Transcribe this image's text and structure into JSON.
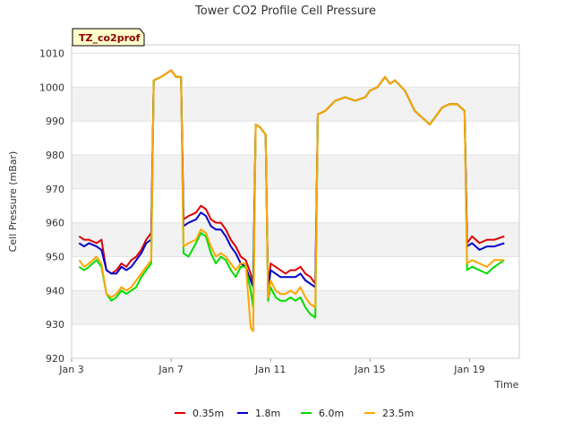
{
  "chart_data": {
    "type": "line",
    "title": "Tower CO2 Profile Cell Pressure",
    "xlabel": "Time",
    "ylabel": "Cell Pressure (mBar)",
    "badge": "TZ_co2prof",
    "x_ticks": [
      {
        "label": "Jan 3",
        "day": 3
      },
      {
        "label": "Jan 7",
        "day": 7
      },
      {
        "label": "Jan 11",
        "day": 11
      },
      {
        "label": "Jan 15",
        "day": 15
      },
      {
        "label": "Jan 19",
        "day": 19
      }
    ],
    "xlim": [
      3,
      21
    ],
    "y_ticks": [
      920,
      930,
      940,
      950,
      960,
      970,
      980,
      990,
      1000,
      1010
    ],
    "ylim": [
      920,
      1012.5
    ],
    "grid": true,
    "legend_position": "bottom",
    "series": [
      {
        "name": "0.35m",
        "color": "#dd0000",
        "points": [
          [
            3.3,
            956
          ],
          [
            3.5,
            955
          ],
          [
            3.7,
            955
          ],
          [
            4.0,
            954
          ],
          [
            4.2,
            955
          ],
          [
            4.4,
            946
          ],
          [
            4.6,
            945
          ],
          [
            4.8,
            946
          ],
          [
            5.0,
            948
          ],
          [
            5.2,
            947
          ],
          [
            5.4,
            949
          ],
          [
            5.6,
            950
          ],
          [
            5.8,
            952
          ],
          [
            6.0,
            955
          ],
          [
            6.2,
            957
          ],
          [
            6.3,
            1002
          ],
          [
            6.6,
            1003
          ],
          [
            7.0,
            1005
          ],
          [
            7.2,
            1003
          ],
          [
            7.4,
            1003
          ],
          [
            7.5,
            961
          ],
          [
            7.7,
            962
          ],
          [
            8.0,
            963
          ],
          [
            8.2,
            965
          ],
          [
            8.4,
            964
          ],
          [
            8.6,
            961
          ],
          [
            8.8,
            960
          ],
          [
            9.0,
            960
          ],
          [
            9.2,
            958
          ],
          [
            9.4,
            955
          ],
          [
            9.6,
            953
          ],
          [
            9.8,
            950
          ],
          [
            10.0,
            949
          ],
          [
            10.2,
            945
          ],
          [
            10.3,
            942
          ],
          [
            10.4,
            989
          ],
          [
            10.6,
            988
          ],
          [
            10.8,
            986
          ],
          [
            10.9,
            940
          ],
          [
            11.0,
            948
          ],
          [
            11.2,
            947
          ],
          [
            11.4,
            946
          ],
          [
            11.6,
            945
          ],
          [
            11.8,
            946
          ],
          [
            12.0,
            946
          ],
          [
            12.2,
            947
          ],
          [
            12.4,
            945
          ],
          [
            12.6,
            944
          ],
          [
            12.8,
            942
          ],
          [
            12.9,
            992
          ],
          [
            13.2,
            993
          ],
          [
            13.6,
            996
          ],
          [
            14.0,
            997
          ],
          [
            14.4,
            996
          ],
          [
            14.8,
            997
          ],
          [
            15.0,
            999
          ],
          [
            15.3,
            1000
          ],
          [
            15.6,
            1003
          ],
          [
            15.8,
            1001
          ],
          [
            16.0,
            1002
          ],
          [
            16.4,
            999
          ],
          [
            16.8,
            993
          ],
          [
            17.1,
            991
          ],
          [
            17.4,
            989
          ],
          [
            17.6,
            991
          ],
          [
            17.9,
            994
          ],
          [
            18.2,
            995
          ],
          [
            18.5,
            995
          ],
          [
            18.8,
            993
          ],
          [
            18.9,
            954
          ],
          [
            19.1,
            956
          ],
          [
            19.4,
            954
          ],
          [
            19.7,
            955
          ],
          [
            20.0,
            955
          ],
          [
            20.4,
            956
          ]
        ]
      },
      {
        "name": "1.8m",
        "color": "#0000cc",
        "points": [
          [
            3.3,
            954
          ],
          [
            3.5,
            953
          ],
          [
            3.7,
            954
          ],
          [
            4.0,
            953
          ],
          [
            4.2,
            952
          ],
          [
            4.4,
            946
          ],
          [
            4.6,
            945
          ],
          [
            4.8,
            945
          ],
          [
            5.0,
            947
          ],
          [
            5.2,
            946
          ],
          [
            5.4,
            947
          ],
          [
            5.6,
            949
          ],
          [
            5.8,
            951
          ],
          [
            6.0,
            954
          ],
          [
            6.2,
            955
          ],
          [
            6.3,
            1002
          ],
          [
            6.6,
            1003
          ],
          [
            7.0,
            1005
          ],
          [
            7.2,
            1003
          ],
          [
            7.4,
            1003
          ],
          [
            7.5,
            959
          ],
          [
            7.7,
            960
          ],
          [
            8.0,
            961
          ],
          [
            8.2,
            963
          ],
          [
            8.4,
            962
          ],
          [
            8.6,
            959
          ],
          [
            8.8,
            958
          ],
          [
            9.0,
            958
          ],
          [
            9.2,
            956
          ],
          [
            9.4,
            953
          ],
          [
            9.6,
            951
          ],
          [
            9.8,
            948
          ],
          [
            10.0,
            947
          ],
          [
            10.2,
            943
          ],
          [
            10.3,
            941
          ],
          [
            10.4,
            989
          ],
          [
            10.6,
            988
          ],
          [
            10.8,
            986
          ],
          [
            10.9,
            939
          ],
          [
            11.0,
            946
          ],
          [
            11.2,
            945
          ],
          [
            11.4,
            944
          ],
          [
            11.6,
            944
          ],
          [
            11.8,
            944
          ],
          [
            12.0,
            944
          ],
          [
            12.2,
            945
          ],
          [
            12.4,
            943
          ],
          [
            12.6,
            942
          ],
          [
            12.8,
            941
          ],
          [
            12.9,
            992
          ],
          [
            13.2,
            993
          ],
          [
            13.6,
            996
          ],
          [
            14.0,
            997
          ],
          [
            14.4,
            996
          ],
          [
            14.8,
            997
          ],
          [
            15.0,
            999
          ],
          [
            15.3,
            1000
          ],
          [
            15.6,
            1003
          ],
          [
            15.8,
            1001
          ],
          [
            16.0,
            1002
          ],
          [
            16.4,
            999
          ],
          [
            16.8,
            993
          ],
          [
            17.1,
            991
          ],
          [
            17.4,
            989
          ],
          [
            17.6,
            991
          ],
          [
            17.9,
            994
          ],
          [
            18.2,
            995
          ],
          [
            18.5,
            995
          ],
          [
            18.8,
            993
          ],
          [
            18.9,
            953
          ],
          [
            19.1,
            954
          ],
          [
            19.4,
            952
          ],
          [
            19.7,
            953
          ],
          [
            20.0,
            953
          ],
          [
            20.4,
            954
          ]
        ]
      },
      {
        "name": "6.0m",
        "color": "#00dd00",
        "points": [
          [
            3.3,
            947
          ],
          [
            3.5,
            946
          ],
          [
            3.7,
            947
          ],
          [
            4.0,
            949
          ],
          [
            4.2,
            947
          ],
          [
            4.4,
            939
          ],
          [
            4.6,
            937
          ],
          [
            4.8,
            938
          ],
          [
            5.0,
            940
          ],
          [
            5.2,
            939
          ],
          [
            5.4,
            940
          ],
          [
            5.6,
            941
          ],
          [
            5.8,
            944
          ],
          [
            6.0,
            946
          ],
          [
            6.2,
            948
          ],
          [
            6.3,
            1002
          ],
          [
            6.6,
            1003
          ],
          [
            7.0,
            1005
          ],
          [
            7.2,
            1003
          ],
          [
            7.4,
            1003
          ],
          [
            7.5,
            951
          ],
          [
            7.7,
            950
          ],
          [
            8.0,
            954
          ],
          [
            8.2,
            957
          ],
          [
            8.4,
            956
          ],
          [
            8.6,
            951
          ],
          [
            8.8,
            948
          ],
          [
            9.0,
            950
          ],
          [
            9.2,
            949
          ],
          [
            9.4,
            946
          ],
          [
            9.6,
            944
          ],
          [
            9.8,
            947
          ],
          [
            10.0,
            947
          ],
          [
            10.2,
            940
          ],
          [
            10.3,
            935
          ],
          [
            10.4,
            989
          ],
          [
            10.6,
            988
          ],
          [
            10.8,
            986
          ],
          [
            10.9,
            937
          ],
          [
            11.0,
            941
          ],
          [
            11.2,
            938
          ],
          [
            11.4,
            937
          ],
          [
            11.6,
            937
          ],
          [
            11.8,
            938
          ],
          [
            12.0,
            937
          ],
          [
            12.2,
            938
          ],
          [
            12.4,
            935
          ],
          [
            12.6,
            933
          ],
          [
            12.8,
            932
          ],
          [
            12.9,
            992
          ],
          [
            13.2,
            993
          ],
          [
            13.6,
            996
          ],
          [
            14.0,
            997
          ],
          [
            14.4,
            996
          ],
          [
            14.8,
            997
          ],
          [
            15.0,
            999
          ],
          [
            15.3,
            1000
          ],
          [
            15.6,
            1003
          ],
          [
            15.8,
            1001
          ],
          [
            16.0,
            1002
          ],
          [
            16.4,
            999
          ],
          [
            16.8,
            993
          ],
          [
            17.1,
            991
          ],
          [
            17.4,
            989
          ],
          [
            17.6,
            991
          ],
          [
            17.9,
            994
          ],
          [
            18.2,
            995
          ],
          [
            18.5,
            995
          ],
          [
            18.8,
            993
          ],
          [
            18.9,
            946
          ],
          [
            19.1,
            947
          ],
          [
            19.4,
            946
          ],
          [
            19.7,
            945
          ],
          [
            20.0,
            947
          ],
          [
            20.4,
            949
          ]
        ]
      },
      {
        "name": "23.5m",
        "color": "#ffa500",
        "points": [
          [
            3.3,
            949
          ],
          [
            3.5,
            947
          ],
          [
            3.7,
            948
          ],
          [
            4.0,
            950
          ],
          [
            4.2,
            948
          ],
          [
            4.4,
            939
          ],
          [
            4.6,
            938
          ],
          [
            4.8,
            939
          ],
          [
            5.0,
            941
          ],
          [
            5.2,
            940
          ],
          [
            5.4,
            941
          ],
          [
            5.6,
            943
          ],
          [
            5.8,
            945
          ],
          [
            6.0,
            947
          ],
          [
            6.2,
            949
          ],
          [
            6.3,
            1002
          ],
          [
            6.6,
            1003
          ],
          [
            7.0,
            1005
          ],
          [
            7.2,
            1003
          ],
          [
            7.4,
            1003
          ],
          [
            7.5,
            953
          ],
          [
            7.7,
            954
          ],
          [
            8.0,
            955
          ],
          [
            8.2,
            958
          ],
          [
            8.4,
            957
          ],
          [
            8.6,
            953
          ],
          [
            8.8,
            950
          ],
          [
            9.0,
            951
          ],
          [
            9.2,
            950
          ],
          [
            9.4,
            948
          ],
          [
            9.6,
            946
          ],
          [
            9.8,
            948
          ],
          [
            10.0,
            948
          ],
          [
            10.2,
            929
          ],
          [
            10.3,
            928
          ],
          [
            10.4,
            989
          ],
          [
            10.6,
            988
          ],
          [
            10.8,
            986
          ],
          [
            10.9,
            938
          ],
          [
            11.0,
            943
          ],
          [
            11.2,
            940
          ],
          [
            11.4,
            939
          ],
          [
            11.6,
            939
          ],
          [
            11.8,
            940
          ],
          [
            12.0,
            939
          ],
          [
            12.2,
            941
          ],
          [
            12.4,
            938
          ],
          [
            12.6,
            936
          ],
          [
            12.8,
            935
          ],
          [
            12.9,
            992
          ],
          [
            13.2,
            993
          ],
          [
            13.6,
            996
          ],
          [
            14.0,
            997
          ],
          [
            14.4,
            996
          ],
          [
            14.8,
            997
          ],
          [
            15.0,
            999
          ],
          [
            15.3,
            1000
          ],
          [
            15.6,
            1003
          ],
          [
            15.8,
            1001
          ],
          [
            16.0,
            1002
          ],
          [
            16.4,
            999
          ],
          [
            16.8,
            993
          ],
          [
            17.1,
            991
          ],
          [
            17.4,
            989
          ],
          [
            17.6,
            991
          ],
          [
            17.9,
            994
          ],
          [
            18.2,
            995
          ],
          [
            18.5,
            995
          ],
          [
            18.8,
            993
          ],
          [
            18.9,
            948
          ],
          [
            19.1,
            949
          ],
          [
            19.4,
            948
          ],
          [
            19.7,
            947
          ],
          [
            20.0,
            949
          ],
          [
            20.4,
            949
          ]
        ]
      }
    ]
  }
}
